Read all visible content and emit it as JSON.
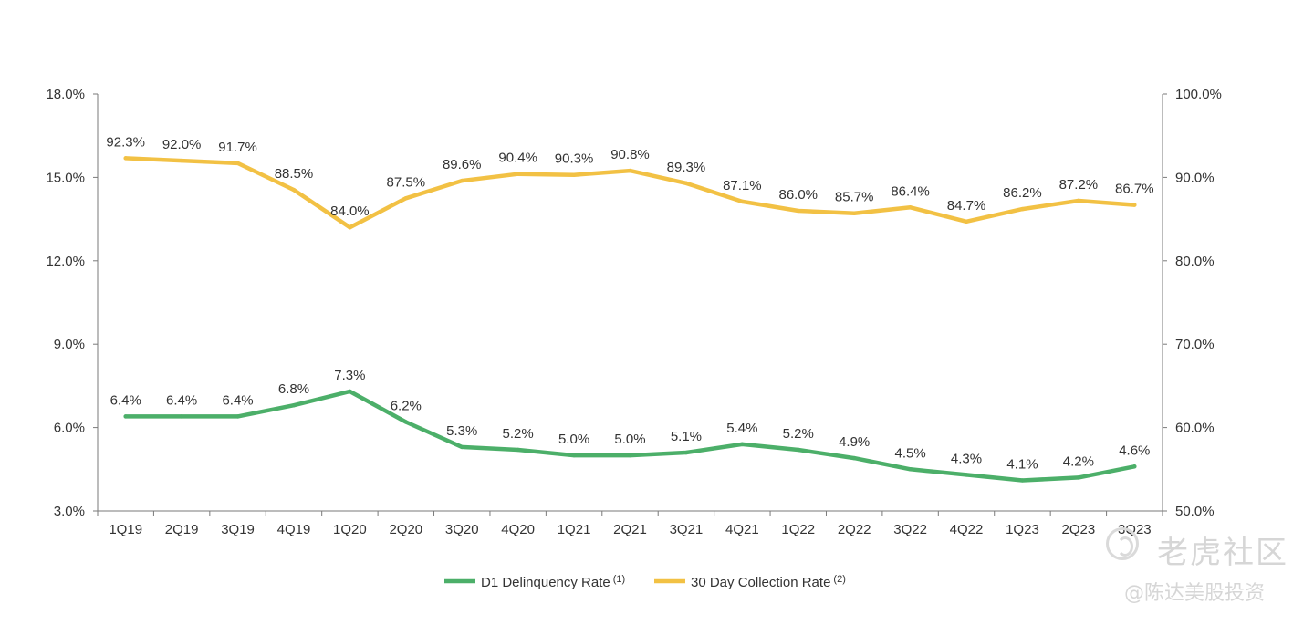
{
  "chart_data": {
    "type": "line",
    "title": "",
    "categories": [
      "1Q19",
      "2Q19",
      "3Q19",
      "4Q19",
      "1Q20",
      "2Q20",
      "3Q20",
      "4Q20",
      "1Q21",
      "2Q21",
      "3Q21",
      "4Q21",
      "1Q22",
      "2Q22",
      "3Q22",
      "4Q22",
      "1Q23",
      "2Q23",
      "3Q23"
    ],
    "y_left": {
      "ylim": [
        3.0,
        18.0
      ],
      "ticks": [
        "3.0%",
        "6.0%",
        "9.0%",
        "12.0%",
        "15.0%",
        "18.0%"
      ],
      "tick_values": [
        3,
        6,
        9,
        12,
        15,
        18
      ]
    },
    "y_right": {
      "ylim": [
        50.0,
        100.0
      ],
      "ticks": [
        "50.0%",
        "60.0%",
        "70.0%",
        "80.0%",
        "90.0%",
        "100.0%"
      ],
      "tick_values": [
        50,
        60,
        70,
        80,
        90,
        100
      ]
    },
    "grid": false,
    "legend_position": "bottom-center",
    "series": [
      {
        "name": "D1 Delinquency Rate",
        "superscript": "(1)",
        "axis": "left",
        "color": "#4CAF69",
        "values": [
          6.4,
          6.4,
          6.4,
          6.8,
          7.3,
          6.2,
          5.3,
          5.2,
          5.0,
          5.0,
          5.1,
          5.4,
          5.2,
          4.9,
          4.5,
          4.3,
          4.1,
          4.2,
          4.6
        ],
        "labels": [
          "6.4%",
          "6.4%",
          "6.4%",
          "6.8%",
          "7.3%",
          "6.2%",
          "5.3%",
          "5.2%",
          "5.0%",
          "5.0%",
          "5.1%",
          "5.4%",
          "5.2%",
          "4.9%",
          "4.5%",
          "4.3%",
          "4.1%",
          "4.2%",
          "4.6%"
        ]
      },
      {
        "name": "30 Day Collection Rate",
        "superscript": "(2)",
        "axis": "right",
        "color": "#F2C144",
        "values": [
          92.3,
          92.0,
          91.7,
          88.5,
          84.0,
          87.5,
          89.6,
          90.4,
          90.3,
          90.8,
          89.3,
          87.1,
          86.0,
          85.7,
          86.4,
          84.7,
          86.2,
          87.2,
          86.7
        ],
        "labels": [
          "92.3%",
          "92.0%",
          "91.7%",
          "88.5%",
          "84.0%",
          "87.5%",
          "89.6%",
          "90.4%",
          "90.3%",
          "90.8%",
          "89.3%",
          "87.1%",
          "86.0%",
          "85.7%",
          "86.4%",
          "84.7%",
          "86.2%",
          "87.2%",
          "86.7%"
        ]
      }
    ]
  },
  "watermark": {
    "logo_text": "老虎社区",
    "handle": "@陈达美股投资"
  }
}
